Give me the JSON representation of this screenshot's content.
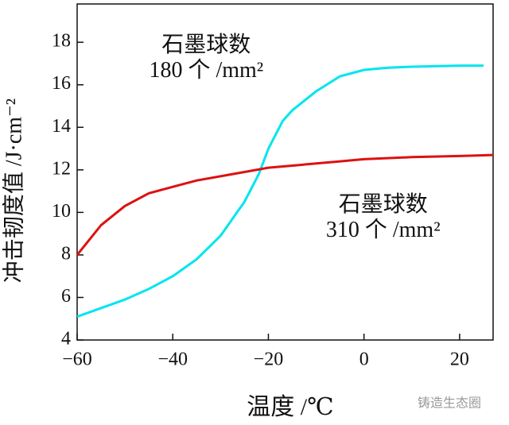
{
  "chart_data": {
    "type": "line",
    "x_label": "温度 /℃",
    "y_label": "冲击韧度值 /J·cm⁻²",
    "annotations": [
      {
        "lines": [
          "石墨球数",
          "180 个 /mm²"
        ],
        "x": -33,
        "y": 17.8
      },
      {
        "lines": [
          "石墨球数",
          "310 个 /mm²"
        ],
        "x": 4,
        "y": 10.3
      }
    ],
    "watermark": "铸造生态圈",
    "series": [
      {
        "color": "#00e5ee",
        "x": [
          -60,
          -55,
          -50,
          -45,
          -40,
          -35,
          -30,
          -25,
          -22,
          -20,
          -17,
          -15,
          -10,
          -5,
          0,
          5,
          10,
          20,
          25
        ],
        "values": [
          5.1,
          5.5,
          5.9,
          6.4,
          7.0,
          7.8,
          8.9,
          10.5,
          11.8,
          13.0,
          14.3,
          14.8,
          15.7,
          16.4,
          16.7,
          16.8,
          16.85,
          16.9,
          16.9
        ]
      },
      {
        "color": "#dd1111",
        "x": [
          -60,
          -55,
          -50,
          -45,
          -40,
          -35,
          -30,
          -25,
          -20,
          -15,
          -10,
          -5,
          0,
          10,
          20,
          27
        ],
        "values": [
          8.0,
          9.4,
          10.3,
          10.9,
          11.2,
          11.5,
          11.7,
          11.9,
          12.1,
          12.2,
          12.3,
          12.4,
          12.5,
          12.6,
          12.65,
          12.7
        ]
      }
    ],
    "xlim": [
      -60,
      27
    ],
    "xticks": [
      {
        "value": -60,
        "label": "−60"
      },
      {
        "value": -40,
        "label": "−40"
      },
      {
        "value": -20,
        "label": "−20"
      },
      0,
      20
    ],
    "ylim": [
      4,
      19.8
    ],
    "yticks": [
      4,
      6,
      8,
      10,
      12,
      14,
      16,
      18
    ]
  }
}
